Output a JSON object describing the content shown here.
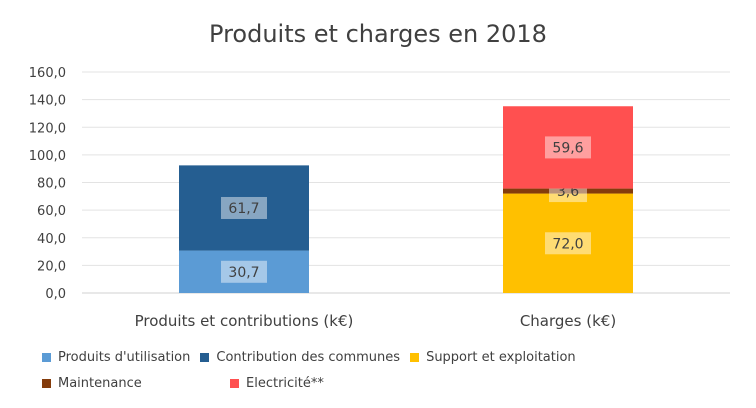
{
  "chart_data": {
    "type": "bar",
    "stacked": true,
    "title": "Produits et charges en 2018",
    "categories": [
      "Produits et contributions (k€)",
      "Charges (k€)"
    ],
    "ylim": [
      0,
      160
    ],
    "yticks": [
      "0,0",
      "20,0",
      "40,0",
      "60,0",
      "80,0",
      "100,0",
      "120,0",
      "140,0",
      "160,0"
    ],
    "grid": true,
    "legend_position": "bottom",
    "series": [
      {
        "name": "Produits d'utilisation",
        "color": "#5B9BD5",
        "values": [
          30.7,
          0
        ],
        "labels": [
          "30,7",
          ""
        ]
      },
      {
        "name": "Contribution des communes",
        "color": "#255E91",
        "values": [
          61.7,
          0
        ],
        "labels": [
          "61,7",
          ""
        ]
      },
      {
        "name": "Support et exploitation",
        "color": "#FFC000",
        "values": [
          0,
          72.0
        ],
        "labels": [
          "",
          "72,0"
        ]
      },
      {
        "name": "Maintenance",
        "color": "#843C0C",
        "values": [
          0,
          3.6
        ],
        "labels": [
          "",
          "3,6"
        ]
      },
      {
        "name": "Electricité**",
        "color": "#FF5050",
        "values": [
          0,
          59.6
        ],
        "labels": [
          "",
          "59,6"
        ]
      }
    ]
  }
}
